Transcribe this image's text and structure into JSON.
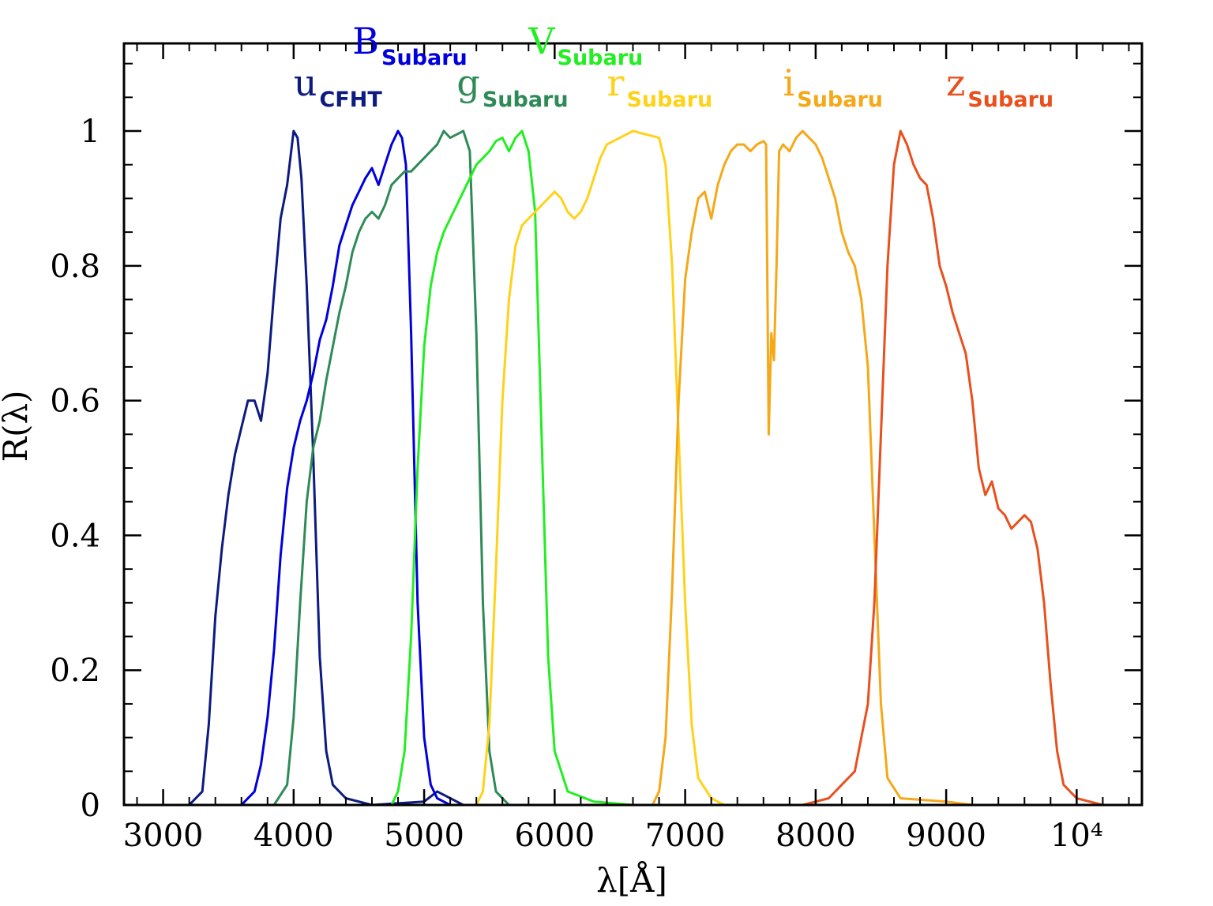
{
  "chart_data": {
    "type": "line",
    "xlabel": "λ[Å]",
    "ylabel": "R(λ)",
    "xlim": [
      2700,
      10500
    ],
    "ylim": [
      0,
      1.13
    ],
    "x_ticks": [
      {
        "value": 3000,
        "label": "3000"
      },
      {
        "value": 4000,
        "label": "4000"
      },
      {
        "value": 5000,
        "label": "5000"
      },
      {
        "value": 6000,
        "label": "6000"
      },
      {
        "value": 7000,
        "label": "7000"
      },
      {
        "value": 8000,
        "label": "8000"
      },
      {
        "value": 9000,
        "label": "9000"
      },
      {
        "value": 10000,
        "label": "10⁴"
      }
    ],
    "y_ticks": [
      {
        "value": 0,
        "label": "0"
      },
      {
        "value": 0.2,
        "label": "0.2"
      },
      {
        "value": 0.4,
        "label": "0.4"
      },
      {
        "value": 0.6,
        "label": "0.6"
      },
      {
        "value": 0.8,
        "label": "0.8"
      },
      {
        "value": 1.0,
        "label": "1"
      }
    ],
    "series": [
      {
        "name": "u",
        "sub": "CFHT",
        "color": "#0d1a80",
        "points": [
          [
            3200,
            0
          ],
          [
            3300,
            0.02
          ],
          [
            3350,
            0.12
          ],
          [
            3400,
            0.28
          ],
          [
            3450,
            0.38
          ],
          [
            3500,
            0.46
          ],
          [
            3550,
            0.52
          ],
          [
            3600,
            0.56
          ],
          [
            3650,
            0.6
          ],
          [
            3700,
            0.6
          ],
          [
            3750,
            0.57
          ],
          [
            3800,
            0.64
          ],
          [
            3850,
            0.76
          ],
          [
            3900,
            0.87
          ],
          [
            3950,
            0.92
          ],
          [
            4000,
            1.0
          ],
          [
            4030,
            0.99
          ],
          [
            4060,
            0.93
          ],
          [
            4100,
            0.77
          ],
          [
            4150,
            0.52
          ],
          [
            4200,
            0.22
          ],
          [
            4250,
            0.08
          ],
          [
            4300,
            0.03
          ],
          [
            4400,
            0.01
          ],
          [
            4600,
            0.0
          ],
          [
            5000,
            0.005
          ],
          [
            5100,
            0.02
          ],
          [
            5150,
            0.015
          ],
          [
            5300,
            0
          ],
          [
            5600,
            0
          ]
        ]
      },
      {
        "name": "B",
        "sub": "Subaru",
        "color": "#0000dd",
        "points": [
          [
            3600,
            0
          ],
          [
            3700,
            0.02
          ],
          [
            3750,
            0.06
          ],
          [
            3800,
            0.13
          ],
          [
            3850,
            0.23
          ],
          [
            3900,
            0.37
          ],
          [
            3950,
            0.47
          ],
          [
            4000,
            0.53
          ],
          [
            4050,
            0.57
          ],
          [
            4100,
            0.6
          ],
          [
            4150,
            0.64
          ],
          [
            4200,
            0.69
          ],
          [
            4250,
            0.72
          ],
          [
            4300,
            0.77
          ],
          [
            4350,
            0.83
          ],
          [
            4400,
            0.86
          ],
          [
            4450,
            0.89
          ],
          [
            4500,
            0.91
          ],
          [
            4550,
            0.93
          ],
          [
            4600,
            0.945
          ],
          [
            4650,
            0.92
          ],
          [
            4700,
            0.95
          ],
          [
            4750,
            0.98
          ],
          [
            4800,
            1.0
          ],
          [
            4830,
            0.99
          ],
          [
            4860,
            0.95
          ],
          [
            4900,
            0.7
          ],
          [
            4950,
            0.3
          ],
          [
            5000,
            0.1
          ],
          [
            5050,
            0.03
          ],
          [
            5100,
            0.01
          ],
          [
            5200,
            0.0
          ]
        ]
      },
      {
        "name": "g",
        "sub": "Subaru",
        "color": "#2e8b57",
        "points": [
          [
            3850,
            0
          ],
          [
            3950,
            0.03
          ],
          [
            4000,
            0.13
          ],
          [
            4050,
            0.3
          ],
          [
            4100,
            0.45
          ],
          [
            4150,
            0.53
          ],
          [
            4200,
            0.57
          ],
          [
            4250,
            0.63
          ],
          [
            4300,
            0.68
          ],
          [
            4350,
            0.73
          ],
          [
            4400,
            0.77
          ],
          [
            4450,
            0.82
          ],
          [
            4500,
            0.85
          ],
          [
            4550,
            0.87
          ],
          [
            4600,
            0.88
          ],
          [
            4650,
            0.87
          ],
          [
            4700,
            0.89
          ],
          [
            4750,
            0.92
          ],
          [
            4800,
            0.93
          ],
          [
            4850,
            0.94
          ],
          [
            4900,
            0.94
          ],
          [
            4950,
            0.95
          ],
          [
            5000,
            0.96
          ],
          [
            5050,
            0.97
          ],
          [
            5100,
            0.98
          ],
          [
            5150,
            1.0
          ],
          [
            5200,
            0.99
          ],
          [
            5250,
            0.995
          ],
          [
            5300,
            1.0
          ],
          [
            5350,
            0.97
          ],
          [
            5400,
            0.7
          ],
          [
            5450,
            0.3
          ],
          [
            5500,
            0.08
          ],
          [
            5550,
            0.02
          ],
          [
            5650,
            0
          ]
        ]
      },
      {
        "name": "V",
        "sub": "Subaru",
        "color": "#22ee22",
        "points": [
          [
            4750,
            0
          ],
          [
            4800,
            0.02
          ],
          [
            4850,
            0.08
          ],
          [
            4900,
            0.25
          ],
          [
            4950,
            0.5
          ],
          [
            5000,
            0.68
          ],
          [
            5050,
            0.77
          ],
          [
            5100,
            0.82
          ],
          [
            5150,
            0.85
          ],
          [
            5200,
            0.87
          ],
          [
            5250,
            0.89
          ],
          [
            5300,
            0.91
          ],
          [
            5350,
            0.93
          ],
          [
            5400,
            0.95
          ],
          [
            5450,
            0.96
          ],
          [
            5500,
            0.97
          ],
          [
            5550,
            0.985
          ],
          [
            5600,
            0.99
          ],
          [
            5650,
            0.97
          ],
          [
            5700,
            0.99
          ],
          [
            5750,
            1.0
          ],
          [
            5800,
            0.97
          ],
          [
            5850,
            0.88
          ],
          [
            5900,
            0.55
          ],
          [
            5950,
            0.22
          ],
          [
            6000,
            0.08
          ],
          [
            6100,
            0.02
          ],
          [
            6300,
            0.005
          ],
          [
            6600,
            0
          ]
        ]
      },
      {
        "name": "r",
        "sub": "Subaru",
        "color": "#ffd21a",
        "points": [
          [
            5400,
            0
          ],
          [
            5450,
            0.02
          ],
          [
            5500,
            0.12
          ],
          [
            5550,
            0.35
          ],
          [
            5600,
            0.6
          ],
          [
            5650,
            0.75
          ],
          [
            5700,
            0.83
          ],
          [
            5750,
            0.86
          ],
          [
            5800,
            0.87
          ],
          [
            5850,
            0.88
          ],
          [
            5900,
            0.89
          ],
          [
            5950,
            0.9
          ],
          [
            6000,
            0.91
          ],
          [
            6050,
            0.9
          ],
          [
            6100,
            0.88
          ],
          [
            6150,
            0.87
          ],
          [
            6200,
            0.88
          ],
          [
            6250,
            0.9
          ],
          [
            6300,
            0.93
          ],
          [
            6350,
            0.96
          ],
          [
            6400,
            0.98
          ],
          [
            6500,
            0.99
          ],
          [
            6600,
            1.0
          ],
          [
            6700,
            0.995
          ],
          [
            6800,
            0.99
          ],
          [
            6850,
            0.95
          ],
          [
            6900,
            0.8
          ],
          [
            6950,
            0.55
          ],
          [
            7000,
            0.3
          ],
          [
            7050,
            0.12
          ],
          [
            7100,
            0.04
          ],
          [
            7200,
            0.01
          ],
          [
            7300,
            0
          ]
        ]
      },
      {
        "name": "i",
        "sub": "Subaru",
        "color": "#f5a818",
        "points": [
          [
            6750,
            0
          ],
          [
            6800,
            0.02
          ],
          [
            6850,
            0.1
          ],
          [
            6900,
            0.32
          ],
          [
            6950,
            0.6
          ],
          [
            7000,
            0.78
          ],
          [
            7050,
            0.85
          ],
          [
            7100,
            0.9
          ],
          [
            7150,
            0.91
          ],
          [
            7200,
            0.87
          ],
          [
            7250,
            0.92
          ],
          [
            7300,
            0.95
          ],
          [
            7350,
            0.97
          ],
          [
            7400,
            0.98
          ],
          [
            7450,
            0.98
          ],
          [
            7500,
            0.97
          ],
          [
            7550,
            0.98
          ],
          [
            7600,
            0.985
          ],
          [
            7620,
            0.98
          ],
          [
            7640,
            0.55
          ],
          [
            7660,
            0.7
          ],
          [
            7680,
            0.66
          ],
          [
            7700,
            0.8
          ],
          [
            7720,
            0.97
          ],
          [
            7750,
            0.98
          ],
          [
            7800,
            0.97
          ],
          [
            7850,
            0.99
          ],
          [
            7900,
            1.0
          ],
          [
            7950,
            0.99
          ],
          [
            8000,
            0.98
          ],
          [
            8050,
            0.96
          ],
          [
            8100,
            0.93
          ],
          [
            8150,
            0.9
          ],
          [
            8200,
            0.85
          ],
          [
            8250,
            0.82
          ],
          [
            8300,
            0.8
          ],
          [
            8350,
            0.75
          ],
          [
            8400,
            0.65
          ],
          [
            8450,
            0.4
          ],
          [
            8500,
            0.15
          ],
          [
            8550,
            0.04
          ],
          [
            8650,
            0.01
          ],
          [
            9000,
            0.005
          ],
          [
            9200,
            0
          ]
        ]
      },
      {
        "name": "z",
        "sub": "Subaru",
        "color": "#e8501e",
        "points": [
          [
            7900,
            0
          ],
          [
            8100,
            0.01
          ],
          [
            8300,
            0.05
          ],
          [
            8400,
            0.15
          ],
          [
            8450,
            0.3
          ],
          [
            8500,
            0.55
          ],
          [
            8550,
            0.8
          ],
          [
            8600,
            0.95
          ],
          [
            8650,
            1.0
          ],
          [
            8700,
            0.98
          ],
          [
            8750,
            0.95
          ],
          [
            8800,
            0.93
          ],
          [
            8850,
            0.92
          ],
          [
            8900,
            0.87
          ],
          [
            8950,
            0.8
          ],
          [
            9000,
            0.77
          ],
          [
            9050,
            0.73
          ],
          [
            9100,
            0.7
          ],
          [
            9150,
            0.67
          ],
          [
            9200,
            0.6
          ],
          [
            9250,
            0.5
          ],
          [
            9300,
            0.46
          ],
          [
            9350,
            0.48
          ],
          [
            9400,
            0.44
          ],
          [
            9450,
            0.43
          ],
          [
            9500,
            0.41
          ],
          [
            9550,
            0.42
          ],
          [
            9600,
            0.43
          ],
          [
            9650,
            0.42
          ],
          [
            9700,
            0.38
          ],
          [
            9750,
            0.3
          ],
          [
            9800,
            0.18
          ],
          [
            9850,
            0.08
          ],
          [
            9900,
            0.03
          ],
          [
            10000,
            0.01
          ],
          [
            10200,
            0
          ],
          [
            10500,
            0
          ]
        ]
      }
    ],
    "band_labels": [
      {
        "series": 0,
        "x": 4000,
        "y": 1.053
      },
      {
        "series": 1,
        "x": 4450,
        "y": 1.115
      },
      {
        "series": 2,
        "x": 5250,
        "y": 1.053
      },
      {
        "series": 3,
        "x": 5800,
        "y": 1.115
      },
      {
        "series": 4,
        "x": 6400,
        "y": 1.053
      },
      {
        "series": 5,
        "x": 7750,
        "y": 1.053
      },
      {
        "series": 6,
        "x": 9000,
        "y": 1.053
      }
    ]
  }
}
